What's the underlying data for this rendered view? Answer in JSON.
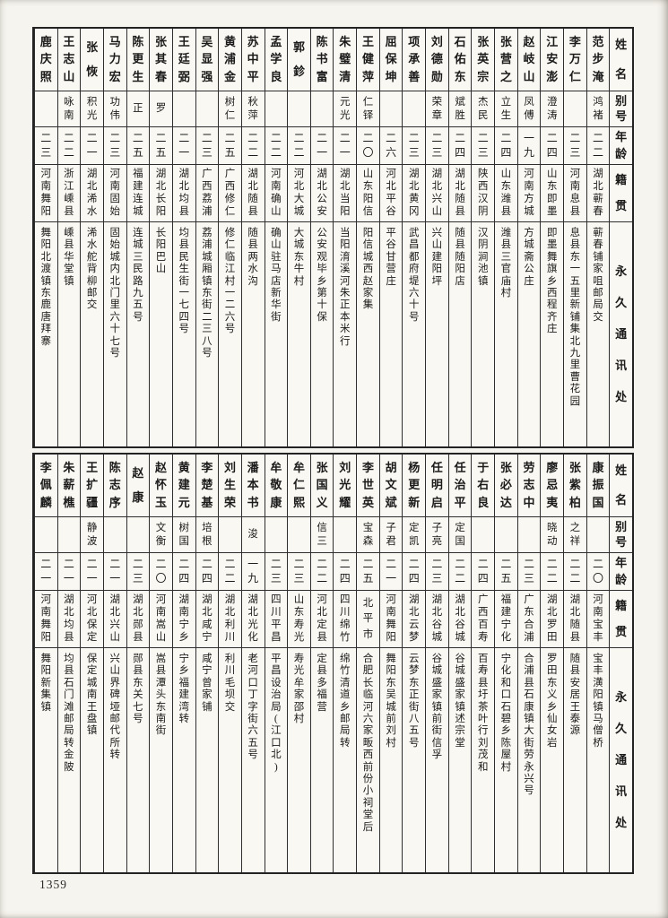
{
  "page_number": "1359",
  "header_labels": {
    "name": "姓名",
    "alias": "别号",
    "age": "年龄",
    "origin": "籍贯",
    "address": "永久通讯处"
  },
  "tables": [
    {
      "entries": [
        {
          "name": "范步淹",
          "alias": "鸿褚",
          "age": "二二",
          "origin": "湖北蕲春",
          "address": "蕲春铺家咀邮局交"
        },
        {
          "name": "李万仁",
          "alias": "",
          "age": "二三",
          "origin": "河南息县",
          "address": "息县东一五里新铺集北九里曹花园"
        },
        {
          "name": "江安澎",
          "alias": "澄涛",
          "age": "二四",
          "origin": "山东即墨",
          "address": "即墨舞旗乡西程齐庄"
        },
        {
          "name": "赵岐山",
          "alias": "凤傅",
          "age": "一九",
          "origin": "河南方城",
          "address": "方城斋公庄"
        },
        {
          "name": "张营之",
          "alias": "立生",
          "age": "二四",
          "origin": "山东潍县",
          "address": "潍县三官庙村"
        },
        {
          "name": "张英宗",
          "alias": "杰民",
          "age": "二三",
          "origin": "陕西汉阴",
          "address": "汉阴涧池镇"
        },
        {
          "name": "石佑东",
          "alias": "斌胜",
          "age": "二四",
          "origin": "湖北随县",
          "address": "随县随阳店"
        },
        {
          "name": "刘德勋",
          "alias": "荣章",
          "age": "二三",
          "origin": "湖北兴山",
          "address": "兴山建阳坪"
        },
        {
          "name": "项承善",
          "alias": "",
          "age": "二三",
          "origin": "湖北黄冈",
          "address": "武昌都府堤六十号"
        },
        {
          "name": "屈保坤",
          "alias": "",
          "age": "二六",
          "origin": "河北平谷",
          "address": "平谷甘营庄"
        },
        {
          "name": "王健萍",
          "alias": "仁铎",
          "age": "二〇",
          "origin": "山东阳信",
          "address": "阳信城西赵家集"
        },
        {
          "name": "朱璧清",
          "alias": "元光",
          "age": "二一",
          "origin": "湖北当阳",
          "address": "当阳淯溪河朱正本米行"
        },
        {
          "name": "陈书富",
          "alias": "",
          "age": "二一",
          "origin": "湖北公安",
          "address": "公安观毕乡第十保"
        },
        {
          "name": "郭鉁",
          "alias": "",
          "age": "二二",
          "origin": "河北大城",
          "address": "大城东牛村"
        },
        {
          "name": "孟学良",
          "alias": "",
          "age": "二二",
          "origin": "河南确山",
          "address": "确山驻马店新华街"
        },
        {
          "name": "苏中平",
          "alias": "秋萍",
          "age": "二二",
          "origin": "湖北随县",
          "address": "随县两水沟"
        },
        {
          "name": "黄浦金",
          "alias": "树仁",
          "age": "二五",
          "origin": "广西修仁",
          "address": "修仁临江村一二六号"
        },
        {
          "name": "吴显强",
          "alias": "",
          "age": "二三",
          "origin": "广西荔浦",
          "address": "荔浦城厢镇东街二三八号"
        },
        {
          "name": "王廷弼",
          "alias": "",
          "age": "二一",
          "origin": "湖北均县",
          "address": "均县民生街一七四号"
        },
        {
          "name": "张其春",
          "alias": "罗",
          "age": "二五",
          "origin": "湖北长阳",
          "address": "长阳巴山"
        },
        {
          "name": "陈更生",
          "alias": "正",
          "age": "二五",
          "origin": "福建连城",
          "address": "连城三民路九五号"
        },
        {
          "name": "马力宏",
          "alias": "功伟",
          "age": "二三",
          "origin": "河南固始",
          "address": "固始城内北门里六十七号"
        },
        {
          "name": "张恢",
          "alias": "积光",
          "age": "二一",
          "origin": "湖北浠水",
          "address": "浠水舵背柳邮交"
        },
        {
          "name": "王志山",
          "alias": "咏南",
          "age": "二二",
          "origin": "浙江嵊县",
          "address": "嵊县华堂镇"
        },
        {
          "name": "鹿庆照",
          "alias": "",
          "age": "二三",
          "origin": "河南舞阳",
          "address": "舞阳北渡镇东鹿唐拜寨"
        }
      ]
    },
    {
      "entries": [
        {
          "name": "康振国",
          "alias": "",
          "age": "二〇",
          "origin": "河南宝丰",
          "address": "宝丰潢阳镇马僧桥"
        },
        {
          "name": "张紫柏",
          "alias": "之祥",
          "age": "二二",
          "origin": "湖北随县",
          "address": "随县安居王泰源"
        },
        {
          "name": "廖忌夷",
          "alias": "晓动",
          "age": "二二",
          "origin": "湖北罗田",
          "address": "罗田东义乡仙女岩"
        },
        {
          "name": "劳志中",
          "alias": "",
          "age": "二三",
          "origin": "广东合浦",
          "address": "合浦县石康镇大街劳永兴号"
        },
        {
          "name": "张必达",
          "alias": "",
          "age": "二五",
          "origin": "福建宁化",
          "address": "宁化和口石碧乡陈屋村"
        },
        {
          "name": "于右良",
          "alias": "",
          "age": "二四",
          "origin": "广西百寿",
          "address": "百寿县圩茶叶行刘茂和"
        },
        {
          "name": "任治平",
          "alias": "定国",
          "age": "二二",
          "origin": "湖北谷城",
          "address": "谷城盛家镇述宗堂"
        },
        {
          "name": "任明启",
          "alias": "子亮",
          "age": "二三",
          "origin": "湖北谷城",
          "address": "谷城盛家镇前街信孚"
        },
        {
          "name": "杨更新",
          "alias": "定凯",
          "age": "二四",
          "origin": "湖北云梦",
          "address": "云梦东正街八五号"
        },
        {
          "name": "胡文斌",
          "alias": "子君",
          "age": "二一",
          "origin": "河南舞阳",
          "address": "舞阳东吴城前刘村"
        },
        {
          "name": "李世英",
          "alias": "宝森",
          "age": "二五",
          "origin": "北平市",
          "address": "合肥长临河六家畈西前份小祠堂后"
        },
        {
          "name": "刘光耀",
          "alias": "",
          "age": "二四",
          "origin": "四川绵竹",
          "address": "绵竹清道乡邮局转"
        },
        {
          "name": "张国义",
          "alias": "信三",
          "age": "二二",
          "origin": "河北定县",
          "address": "定县多福营"
        },
        {
          "name": "牟仁熙",
          "alias": "",
          "age": "二三",
          "origin": "山东寿光",
          "address": "寿光牟家邵村"
        },
        {
          "name": "牟敬康",
          "alias": "",
          "age": "二三",
          "origin": "四川平昌",
          "address": "平昌设治局(江口北)"
        },
        {
          "name": "潘本书",
          "alias": "浚",
          "age": "一九",
          "origin": "湖北光化",
          "address": "老河口丁字街六五号"
        },
        {
          "name": "刘生荣",
          "alias": "",
          "age": "二二",
          "origin": "湖北利川",
          "address": "利川毛坝交"
        },
        {
          "name": "李楚基",
          "alias": "培根",
          "age": "二四",
          "origin": "湖北咸宁",
          "address": "咸宁曾家铺"
        },
        {
          "name": "黄建元",
          "alias": "树国",
          "age": "二四",
          "origin": "湖南宁乡",
          "address": "宁乡福建湾转"
        },
        {
          "name": "赵怀玉",
          "alias": "文衡",
          "age": "二〇",
          "origin": "河南嵩山",
          "address": "嵩县潭头东南街"
        },
        {
          "name": "赵康",
          "alias": "",
          "age": "二三",
          "origin": "湖北郧县",
          "address": "郧县东关七号"
        },
        {
          "name": "陈志序",
          "alias": "",
          "age": "二一",
          "origin": "湖北兴山",
          "address": "兴山界碑垭邮代所转"
        },
        {
          "name": "王扩疆",
          "alias": "静波",
          "age": "二一",
          "origin": "河北保定",
          "address": "保定城南王盘镇"
        },
        {
          "name": "朱薪樵",
          "alias": "",
          "age": "二一",
          "origin": "湖北均县",
          "address": "均县石门滩邮局转金陂"
        },
        {
          "name": "李佩麟",
          "alias": "",
          "age": "二一",
          "origin": "河南舞阳",
          "address": "舞阳新集镇"
        }
      ]
    }
  ]
}
